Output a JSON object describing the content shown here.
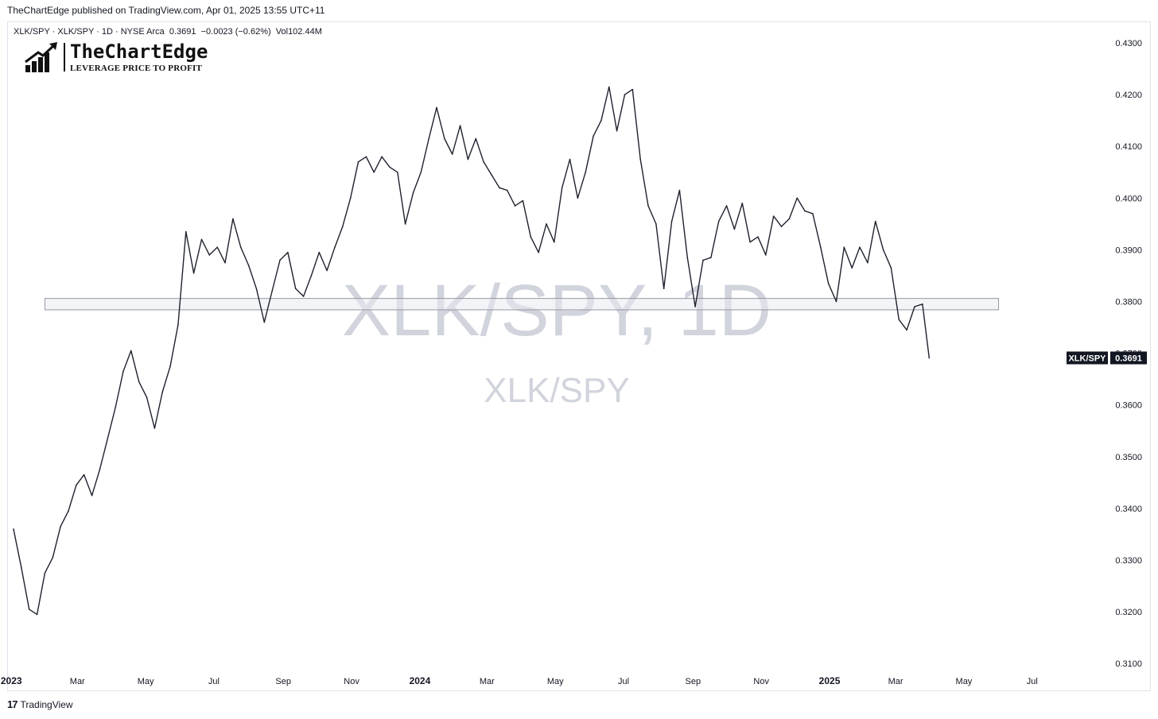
{
  "header": {
    "published": "TheChartEdge published on TradingView.com, Apr 01, 2025 13:55 UTC+11"
  },
  "legend": {
    "text": "XLK/SPY · XLK/SPY · 1D · NYSE Arca  0.3691  −0.0023 (−0.62%)  Vol102.44M"
  },
  "brand": {
    "name": "TheChartEdge",
    "tagline": "LEVERAGE PRICE TO PROFIT"
  },
  "watermark": {
    "main": "XLK/SPY, 1D",
    "sub": "XLK/SPY"
  },
  "footer": {
    "logo_text": "TradingView"
  },
  "colors": {
    "line": "#1e222d",
    "zone_fill": "#e8ebf0",
    "zone_border": "#9598a1",
    "watermark": "#d1d4dc",
    "price_tag_bg": "#131722",
    "price_tag_text": "#ffffff",
    "axis_text": "#131722"
  },
  "chart_data": {
    "type": "line",
    "series": [
      {
        "name": "XLK/SPY",
        "x": [
          "2023-01-03",
          "2023-01-10",
          "2023-01-17",
          "2023-01-24",
          "2023-01-31",
          "2023-02-07",
          "2023-02-14",
          "2023-02-21",
          "2023-02-28",
          "2023-03-07",
          "2023-03-14",
          "2023-03-21",
          "2023-03-28",
          "2023-04-04",
          "2023-04-11",
          "2023-04-18",
          "2023-04-25",
          "2023-05-02",
          "2023-05-09",
          "2023-05-16",
          "2023-05-23",
          "2023-05-30",
          "2023-06-06",
          "2023-06-13",
          "2023-06-20",
          "2023-06-27",
          "2023-07-04",
          "2023-07-11",
          "2023-07-18",
          "2023-07-25",
          "2023-08-01",
          "2023-08-08",
          "2023-08-15",
          "2023-08-22",
          "2023-08-29",
          "2023-09-05",
          "2023-09-12",
          "2023-09-19",
          "2023-09-26",
          "2023-10-03",
          "2023-10-10",
          "2023-10-17",
          "2023-10-24",
          "2023-10-31",
          "2023-11-07",
          "2023-11-14",
          "2023-11-21",
          "2023-11-28",
          "2023-12-05",
          "2023-12-12",
          "2023-12-19",
          "2023-12-26",
          "2024-01-02",
          "2024-01-09",
          "2024-01-16",
          "2024-01-23",
          "2024-01-30",
          "2024-02-06",
          "2024-02-13",
          "2024-02-20",
          "2024-02-27",
          "2024-03-05",
          "2024-03-12",
          "2024-03-19",
          "2024-03-26",
          "2024-04-02",
          "2024-04-09",
          "2024-04-16",
          "2024-04-23",
          "2024-04-30",
          "2024-05-07",
          "2024-05-14",
          "2024-05-21",
          "2024-05-28",
          "2024-06-04",
          "2024-06-11",
          "2024-06-18",
          "2024-06-25",
          "2024-07-02",
          "2024-07-09",
          "2024-07-16",
          "2024-07-23",
          "2024-07-30",
          "2024-08-06",
          "2024-08-13",
          "2024-08-20",
          "2024-08-27",
          "2024-09-03",
          "2024-09-10",
          "2024-09-17",
          "2024-09-24",
          "2024-10-01",
          "2024-10-08",
          "2024-10-15",
          "2024-10-22",
          "2024-10-29",
          "2024-11-05",
          "2024-11-12",
          "2024-11-19",
          "2024-11-26",
          "2024-12-03",
          "2024-12-10",
          "2024-12-17",
          "2024-12-24",
          "2024-12-31",
          "2025-01-07",
          "2025-01-14",
          "2025-01-21",
          "2025-01-28",
          "2025-02-04",
          "2025-02-11",
          "2025-02-18",
          "2025-02-25",
          "2025-03-04",
          "2025-03-11",
          "2025-03-18",
          "2025-03-25",
          "2025-03-31"
        ],
        "values": [
          0.336,
          0.3285,
          0.3205,
          0.3195,
          0.3275,
          0.3305,
          0.3365,
          0.3395,
          0.3445,
          0.3465,
          0.3425,
          0.3475,
          0.3535,
          0.3595,
          0.3665,
          0.3705,
          0.3645,
          0.3615,
          0.3555,
          0.3625,
          0.3675,
          0.3755,
          0.3935,
          0.3855,
          0.392,
          0.389,
          0.3905,
          0.3875,
          0.396,
          0.3905,
          0.387,
          0.3825,
          0.376,
          0.382,
          0.388,
          0.3895,
          0.3825,
          0.381,
          0.385,
          0.3895,
          0.386,
          0.3905,
          0.3945,
          0.4,
          0.407,
          0.408,
          0.405,
          0.408,
          0.406,
          0.405,
          0.395,
          0.401,
          0.405,
          0.4115,
          0.4175,
          0.4115,
          0.4085,
          0.414,
          0.4075,
          0.4115,
          0.407,
          0.4045,
          0.402,
          0.4015,
          0.3985,
          0.3995,
          0.3925,
          0.3895,
          0.395,
          0.3915,
          0.402,
          0.4075,
          0.4,
          0.405,
          0.412,
          0.415,
          0.4215,
          0.413,
          0.42,
          0.421,
          0.4075,
          0.3985,
          0.395,
          0.3825,
          0.3955,
          0.4015,
          0.3885,
          0.379,
          0.388,
          0.3885,
          0.3955,
          0.3985,
          0.394,
          0.399,
          0.3915,
          0.3925,
          0.389,
          0.3965,
          0.3945,
          0.396,
          0.4,
          0.3975,
          0.397,
          0.3905,
          0.3835,
          0.38,
          0.3905,
          0.3865,
          0.3905,
          0.3875,
          0.3955,
          0.39,
          0.3865,
          0.3765,
          0.3745,
          0.379,
          0.3795,
          0.3691
        ]
      }
    ],
    "ylim": [
      0.3085,
      0.434
    ],
    "y_ticks": [
      "0.4300",
      "0.4200",
      "0.4100",
      "0.4000",
      "0.3900",
      "0.3800",
      "0.3700",
      "0.3600",
      "0.3500",
      "0.3400",
      "0.3300",
      "0.3200",
      "0.3100"
    ],
    "x_ticks": [
      {
        "label": "2023",
        "date": "2023-01-01",
        "bold": true
      },
      {
        "label": "Mar",
        "date": "2023-03-01",
        "bold": false
      },
      {
        "label": "May",
        "date": "2023-05-01",
        "bold": false
      },
      {
        "label": "Jul",
        "date": "2023-07-01",
        "bold": false
      },
      {
        "label": "Sep",
        "date": "2023-09-01",
        "bold": false
      },
      {
        "label": "Nov",
        "date": "2023-11-01",
        "bold": false
      },
      {
        "label": "2024",
        "date": "2024-01-01",
        "bold": true
      },
      {
        "label": "Mar",
        "date": "2024-03-01",
        "bold": false
      },
      {
        "label": "May",
        "date": "2024-05-01",
        "bold": false
      },
      {
        "label": "Jul",
        "date": "2024-07-01",
        "bold": false
      },
      {
        "label": "Sep",
        "date": "2024-09-01",
        "bold": false
      },
      {
        "label": "Nov",
        "date": "2024-11-01",
        "bold": false
      },
      {
        "label": "2025",
        "date": "2025-01-01",
        "bold": true
      },
      {
        "label": "Mar",
        "date": "2025-03-01",
        "bold": false
      },
      {
        "label": "May",
        "date": "2025-05-01",
        "bold": false
      },
      {
        "label": "Jul",
        "date": "2025-07-01",
        "bold": false
      }
    ],
    "xlim": [
      "2022-12-29",
      "2025-07-31"
    ],
    "support_zone": {
      "y_low": 0.3784,
      "y_high": 0.3806,
      "x_start": "2023-01-31",
      "x_end": "2025-06-01"
    },
    "last_price": {
      "label": "XLK/SPY",
      "value": "0.3691"
    },
    "grid": false
  }
}
